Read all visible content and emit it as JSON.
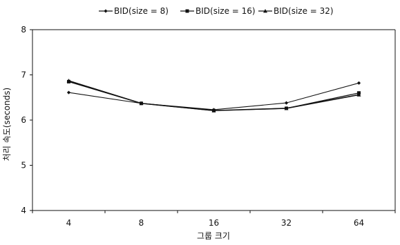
{
  "chart_data": {
    "type": "line",
    "title": "",
    "xlabel": "그룹 크기",
    "ylabel": "처리 속도(seconds)",
    "categories": [
      "4",
      "8",
      "16",
      "32",
      "64"
    ],
    "ylim": [
      4,
      8
    ],
    "yticks": [
      "4",
      "5",
      "6",
      "7",
      "8"
    ],
    "grid": false,
    "legend_position": "top",
    "series": [
      {
        "name": "BID(size = 8)",
        "marker": "diamond",
        "values": [
          6.61,
          6.37,
          6.23,
          6.38,
          6.82
        ]
      },
      {
        "name": "BID(size = 16)",
        "marker": "square",
        "values": [
          6.85,
          6.37,
          6.21,
          6.26,
          6.6
        ]
      },
      {
        "name": "BID(size = 32)",
        "marker": "triangle",
        "values": [
          6.87,
          6.37,
          6.21,
          6.26,
          6.56
        ]
      }
    ],
    "colors": {
      "line": "#111111",
      "axis": "#111111"
    }
  }
}
